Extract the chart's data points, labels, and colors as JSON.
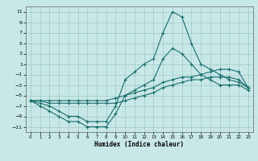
{
  "xlabel": "Humidex (Indice chaleur)",
  "bg_color": "#c8e8e8",
  "grid_color": "#a0c8c8",
  "line_color": "#1a6e6e",
  "x_values": [
    0,
    1,
    2,
    3,
    4,
    5,
    6,
    7,
    8,
    9,
    10,
    11,
    12,
    13,
    14,
    15,
    16,
    17,
    18,
    19,
    20,
    21,
    22,
    23
  ],
  "series": [
    [
      -6,
      -7,
      -8,
      -9,
      -10,
      -10,
      -11,
      -11,
      -11,
      -8.5,
      -5,
      -4,
      -3,
      -2,
      2,
      4,
      3,
      1,
      -1,
      -2,
      -3,
      -3,
      -3,
      -4
    ],
    [
      -6,
      -6.5,
      -7,
      -8,
      -9,
      -9,
      -10,
      -10,
      -10,
      -7,
      -2,
      -0.5,
      1,
      2,
      7,
      11,
      10,
      5,
      1,
      0,
      -1,
      -2,
      -2.5,
      -3.5
    ],
    [
      -6,
      -6,
      -6.5,
      -6.5,
      -6.5,
      -6.5,
      -6.5,
      -6.5,
      -6.5,
      -6.5,
      -6,
      -5.5,
      -5,
      -4.5,
      -3.5,
      -3,
      -2.5,
      -2,
      -2,
      -1.5,
      -1.5,
      -1.5,
      -2,
      -3.5
    ],
    [
      -6,
      -6,
      -6,
      -6,
      -6,
      -6,
      -6,
      -6,
      -6,
      -5.5,
      -5,
      -4.5,
      -4,
      -3.5,
      -2.5,
      -2,
      -1.5,
      -1.5,
      -1,
      -0.5,
      0,
      0,
      -0.5,
      -3.5
    ]
  ],
  "ylim": [
    -12,
    12
  ],
  "yticks": [
    -11,
    -9,
    -7,
    -5,
    -3,
    -1,
    1,
    3,
    5,
    7,
    9,
    11
  ],
  "xlim": [
    -0.5,
    23.5
  ],
  "xticks": [
    0,
    1,
    2,
    3,
    4,
    5,
    6,
    7,
    8,
    9,
    10,
    11,
    12,
    13,
    14,
    15,
    16,
    17,
    18,
    19,
    20,
    21,
    22,
    23
  ]
}
